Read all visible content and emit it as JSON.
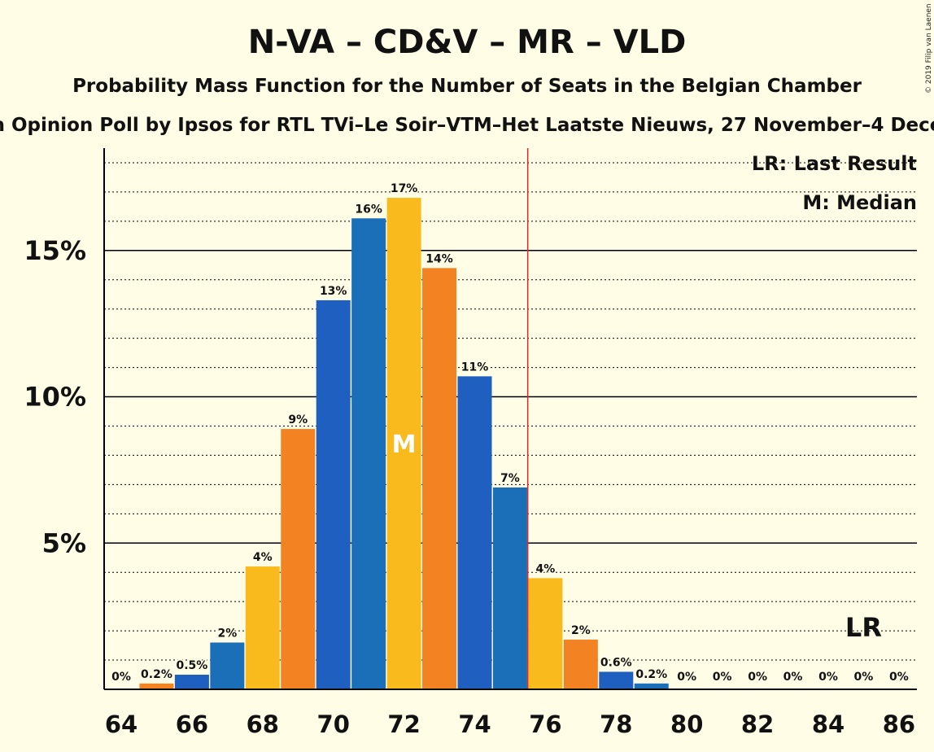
{
  "title": "N-VA – CD&V – MR – VLD",
  "subtitle": "Probability Mass Function for the Number of Seats in the Belgian Chamber",
  "subtitle2": "n Opinion Poll by Ipsos for RTL TVi–Le Soir–VTM–Het Laatste Nieuws, 27 November–4 Dece",
  "copyright": "© 2019 Filip van Laenen",
  "legend": {
    "lr": "LR: Last Result",
    "m": "M: Median"
  },
  "median_marker": "M",
  "lr_marker": "LR",
  "colors": {
    "blue": "#1F5FC0",
    "blue2": "#1B6FB8",
    "yellow": "#F9BA1E",
    "orange": "#F28222",
    "majority_line": "#E8262A",
    "background": "#FFFDE6"
  },
  "chart_data": {
    "type": "bar",
    "categories": [
      64,
      65,
      66,
      67,
      68,
      69,
      70,
      71,
      72,
      73,
      74,
      75,
      76,
      77,
      78,
      79,
      80,
      81,
      82,
      83,
      84,
      85,
      86
    ],
    "values": [
      0,
      0.2,
      0.5,
      1.6,
      4.2,
      8.9,
      13.3,
      16.1,
      16.8,
      14.4,
      10.7,
      6.9,
      3.8,
      1.7,
      0.6,
      0.2,
      0,
      0,
      0,
      0,
      0,
      0,
      0
    ],
    "data_labels": [
      "0%",
      "0.2%",
      "0.5%",
      "2%",
      "4%",
      "9%",
      "13%",
      "16%",
      "17%",
      "14%",
      "11%",
      "7%",
      "4%",
      "2%",
      "0.6%",
      "0.2%",
      "0%",
      "0%",
      "0%",
      "0%",
      "0%",
      "0%",
      "0%"
    ],
    "bar_colors": [
      "#1F5FC0",
      "#F28222",
      "#1F5FC0",
      "#1B6FB8",
      "#F9BA1E",
      "#F28222",
      "#1F5FC0",
      "#1B6FB8",
      "#F9BA1E",
      "#F28222",
      "#1F5FC0",
      "#1B6FB8",
      "#F9BA1E",
      "#F28222",
      "#1F5FC0",
      "#1B6FB8",
      "#F9BA1E",
      "#F28222",
      "#1F5FC0",
      "#1B6FB8",
      "#F9BA1E",
      "#F28222",
      "#1F5FC0"
    ],
    "x_ticks": [
      64,
      66,
      68,
      70,
      72,
      74,
      76,
      78,
      80,
      82,
      84,
      86
    ],
    "y_ticks": [
      {
        "value": 5,
        "label": "5%"
      },
      {
        "value": 10,
        "label": "10%"
      },
      {
        "value": 15,
        "label": "15%"
      }
    ],
    "ylim": [
      0,
      18.5
    ],
    "median": 72,
    "last_result": 85,
    "majority_threshold": 75.5,
    "grid": true,
    "legend_position": "top-right"
  }
}
